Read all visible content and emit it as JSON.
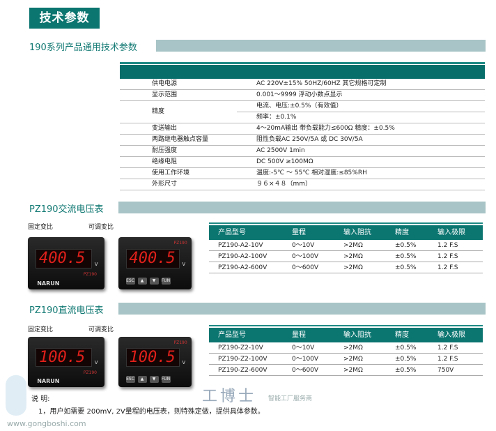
{
  "page_title": "技术参数",
  "general": {
    "title": "190系列产品通用技术参数",
    "rows": [
      {
        "label": "供电电源",
        "value": "AC 220V±15%  50HZ/60HZ  其它规格可定制"
      },
      {
        "label": "显示范围",
        "value": "0.001～9999 浮动小数点显示"
      },
      {
        "label": "精度",
        "values": [
          "电流、电压:±0.5%（有效值）",
          "频率：±0.1%"
        ]
      },
      {
        "label": "变送输出",
        "value": "4～20mA输出  带负载能力≤600Ω  精度：±0.5%"
      },
      {
        "label": "两路继电器触点容量",
        "value": "阻性负载AC 250V/5A 或 DC 30V/5A"
      },
      {
        "label": "耐压强度",
        "value": "AC 2500V  1min"
      },
      {
        "label": "绝缘电阻",
        "value": "DC 500V  ≥100MΩ"
      },
      {
        "label": "使用工作环境",
        "value": "温度:-5℃ ～ 55℃   相对湿度:≤85%RH"
      },
      {
        "label": "外形尺寸",
        "value": "９６×４８（mm）"
      }
    ]
  },
  "ac": {
    "title": "PZ190交流电压表",
    "fixed_label": "固定变比",
    "adjustable_label": "可调变比",
    "meter_fixed": {
      "display": "400.5",
      "unit": "V",
      "brand": "NARUN",
      "model": "PZ190"
    },
    "meter_adj": {
      "display": "400.5",
      "unit": "V",
      "model": "PZ190",
      "buttons": [
        "ESC",
        "▲",
        "▼",
        "FUN"
      ]
    },
    "headers": [
      "产品型号",
      "量程",
      "输入阻抗",
      "精度",
      "输入极限"
    ],
    "rows": [
      [
        "PZ190-A2-10V",
        "0～10V",
        ">2MΩ",
        "±0.5%",
        "1.2 F.S"
      ],
      [
        "PZ190-A2-100V",
        "0～100V",
        ">2MΩ",
        "±0.5%",
        "1.2 F.S"
      ],
      [
        "PZ190-A2-600V",
        "0～600V",
        ">2MΩ",
        "±0.5%",
        "1.2 F.S"
      ]
    ]
  },
  "dc": {
    "title": "PZ190直流电压表",
    "fixed_label": "固定变比",
    "adjustable_label": "可调变比",
    "meter_fixed": {
      "display": "100.5",
      "unit": "V",
      "brand": "NARUN",
      "model": "PZ190"
    },
    "meter_adj": {
      "display": "100.5",
      "unit": "V",
      "model": "PZ190",
      "buttons": [
        "ESC",
        "▲",
        "▼",
        "FUN"
      ]
    },
    "headers": [
      "产品型号",
      "量程",
      "输入阻抗",
      "精度",
      "输入极限"
    ],
    "rows": [
      [
        "PZ190-Z2-10V",
        "0～10V",
        ">2MΩ",
        "±0.5%",
        "1.2 F.S"
      ],
      [
        "PZ190-Z2-100V",
        "0～100V",
        ">2MΩ",
        "±0.5%",
        "1.2 F.S"
      ],
      [
        "PZ190-Z2-600V",
        "0～600V",
        ">2MΩ",
        "±0.5%",
        "750V"
      ]
    ]
  },
  "notes": {
    "heading": "说 明:",
    "items": [
      "1，用户如需要 200mV, 2V量程的电压表，则特殊定做，提供具体参数。"
    ]
  },
  "watermark": {
    "name": "工博士",
    "tagline": "智能工厂服务商",
    "url": "www.gongboshi.com"
  },
  "colors": {
    "teal": "#0b7570",
    "bar": "#a8c4c6",
    "digit": "#e0201a"
  }
}
